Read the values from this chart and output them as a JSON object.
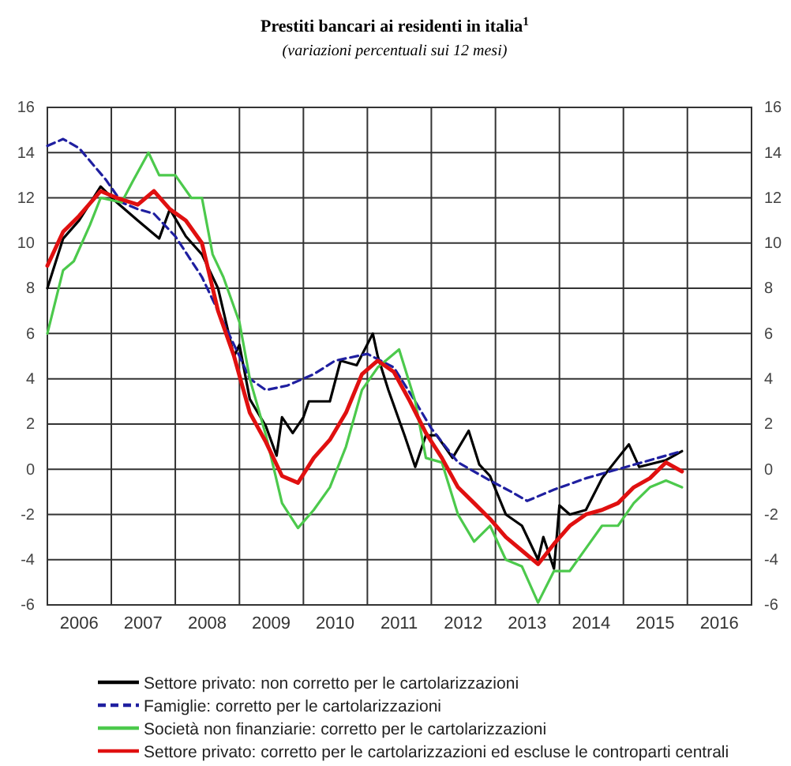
{
  "chart_data": {
    "type": "line",
    "title": "Prestiti bancari ai residenti in italia$^{1}$",
    "subtitle": "(variazioni percentuali sui 12 mesi)",
    "xlim": [
      "2006-01-01",
      "2017-01-01"
    ],
    "xticks": [
      {
        "value": "2006-07-01",
        "label": "2006"
      },
      {
        "value": "2007-07-01",
        "label": "2007"
      },
      {
        "value": "2008-07-01",
        "label": "2008"
      },
      {
        "value": "2009-07-01",
        "label": "2009"
      },
      {
        "value": "2010-07-01",
        "label": "2010"
      },
      {
        "value": "2011-07-01",
        "label": "2011"
      },
      {
        "value": "2012-07-01",
        "label": "2012"
      },
      {
        "value": "2013-07-01",
        "label": "2013"
      },
      {
        "value": "2014-07-01",
        "label": "2014"
      },
      {
        "value": "2015-07-01",
        "label": "2015"
      },
      {
        "value": "2016-07-01",
        "label": "2016"
      },
      {
        "value": "2007-01-01",
        "label": null
      },
      {
        "value": "2008-01-01",
        "label": null
      },
      {
        "value": "2009-01-01",
        "label": null
      },
      {
        "value": "2010-01-01",
        "label": null
      },
      {
        "value": "2011-01-01",
        "label": null
      },
      {
        "value": "2012-01-01",
        "label": null
      },
      {
        "value": "2013-01-01",
        "label": null
      },
      {
        "value": "2014-01-01",
        "label": null
      },
      {
        "value": "2015-01-01",
        "label": null
      },
      {
        "value": "2016-01-01",
        "label": null
      }
    ],
    "ylim": [
      -6,
      16
    ],
    "yticks": [
      -6,
      -4,
      -2,
      0,
      2,
      4,
      6,
      8,
      10,
      12,
      14,
      16
    ],
    "y2lim": [
      -6,
      16
    ],
    "y2ticks": [
      -6,
      -4,
      -2,
      0,
      2,
      4,
      6,
      8,
      10,
      12,
      14,
      16
    ],
    "grid": true,
    "legend": "bottom",
    "series": [
      {
        "name": "Settore privato: non corretto per le cartolarizzazioni",
        "color": "#000000",
        "line_style": "solid",
        "x": [
          "2006-01",
          "2006-04",
          "2006-07",
          "2006-11",
          "2007-02",
          "2007-06",
          "2007-10",
          "2007-12",
          "2008-03",
          "2008-06",
          "2008-09",
          "2008-12",
          "2009-01",
          "2009-03",
          "2009-06",
          "2009-08",
          "2009-09",
          "2009-11",
          "2010-01",
          "2010-02",
          "2010-06",
          "2010-08",
          "2010-11",
          "2011-02",
          "2011-03",
          "2011-05",
          "2011-08",
          "2011-10",
          "2011-12",
          "2012-02",
          "2012-05",
          "2012-08",
          "2012-10",
          "2012-12",
          "2013-03",
          "2013-06",
          "2013-09",
          "2013-10",
          "2013-12",
          "2014-01",
          "2014-03",
          "2014-06",
          "2014-09",
          "2014-12",
          "2015-02",
          "2015-04",
          "2015-09",
          "2015-12"
        ],
        "values": [
          8,
          10.2,
          11,
          12.5,
          11.8,
          11,
          10.2,
          11.5,
          10.3,
          9.5,
          8,
          5,
          5.5,
          3.1,
          1.9,
          0.6,
          2.3,
          1.6,
          2.3,
          3,
          3,
          4.8,
          4.6,
          6,
          5,
          3.5,
          1.5,
          0.1,
          1.5,
          1.5,
          0.5,
          1.7,
          0.2,
          -0.3,
          -2,
          -2.5,
          -4,
          -3,
          -4.4,
          -1.6,
          -2,
          -1.8,
          -0.4,
          0.5,
          1.1,
          0.1,
          0.4,
          0.8
        ]
      },
      {
        "name": "Famiglie: corretto per le cartolarizzazioni",
        "color": "#1f1fa0",
        "line_style": "dashed",
        "x": [
          "2006-01",
          "2006-04",
          "2006-07",
          "2006-12",
          "2007-03",
          "2007-06",
          "2007-09",
          "2008-01",
          "2008-06",
          "2008-10",
          "2009-01",
          "2009-03",
          "2009-06",
          "2009-10",
          "2010-03",
          "2010-07",
          "2011-01",
          "2011-06",
          "2011-10",
          "2012-01",
          "2012-06",
          "2012-12",
          "2013-04",
          "2013-07",
          "2013-12",
          "2014-06",
          "2014-12",
          "2015-06",
          "2015-12"
        ],
        "values": [
          14.3,
          14.6,
          14.2,
          12.8,
          11.8,
          11.5,
          11.3,
          10.3,
          8.5,
          6.5,
          5,
          4,
          3.5,
          3.7,
          4.2,
          4.8,
          5.1,
          4.5,
          3,
          1.8,
          0.3,
          -0.5,
          -1,
          -1.4,
          -0.9,
          -0.4,
          0,
          0.4,
          0.8
        ]
      },
      {
        "name": "Società non finanziarie: corretto per le cartolarizzazioni",
        "color": "#4cc94c",
        "line_style": "solid",
        "x": [
          "2006-01",
          "2006-04",
          "2006-06",
          "2006-09",
          "2006-11",
          "2007-03",
          "2007-05",
          "2007-08",
          "2007-10",
          "2008-01",
          "2008-04",
          "2008-06",
          "2008-08",
          "2008-10",
          "2009-01",
          "2009-03",
          "2009-06",
          "2009-09",
          "2009-12",
          "2010-03",
          "2010-06",
          "2010-09",
          "2010-12",
          "2011-03",
          "2011-07",
          "2011-10",
          "2011-12",
          "2012-03",
          "2012-06",
          "2012-09",
          "2012-12",
          "2013-03",
          "2013-06",
          "2013-09",
          "2013-12",
          "2014-03",
          "2014-06",
          "2014-09",
          "2014-12",
          "2015-03",
          "2015-06",
          "2015-09",
          "2015-12"
        ],
        "values": [
          6,
          8.8,
          9.2,
          10.8,
          12,
          11.8,
          12.7,
          14,
          13,
          13,
          12,
          12,
          9.5,
          8.5,
          6.5,
          4,
          1.5,
          -1.5,
          -2.6,
          -1.8,
          -0.8,
          1,
          3.5,
          4.5,
          5.3,
          3,
          0.5,
          0.3,
          -2,
          -3.2,
          -2.5,
          -4,
          -4.3,
          -5.9,
          -4.5,
          -4.5,
          -3.5,
          -2.5,
          -2.5,
          -1.5,
          -0.8,
          -0.5,
          -0.8
        ]
      },
      {
        "name": "Settore privato: corretto per le cartolarizzazioni ed escluse le controparti centrali",
        "color": "#e01010",
        "line_style": "solid",
        "x": [
          "2006-01",
          "2006-04",
          "2006-07",
          "2006-11",
          "2007-02",
          "2007-06",
          "2007-09",
          "2007-12",
          "2008-03",
          "2008-06",
          "2008-09",
          "2008-12",
          "2009-03",
          "2009-06",
          "2009-09",
          "2009-12",
          "2010-03",
          "2010-06",
          "2010-09",
          "2010-12",
          "2011-03",
          "2011-06",
          "2011-09",
          "2011-12",
          "2012-03",
          "2012-06",
          "2012-09",
          "2012-12",
          "2013-03",
          "2013-06",
          "2013-09",
          "2013-12",
          "2014-03",
          "2014-06",
          "2014-09",
          "2014-12",
          "2015-03",
          "2015-06",
          "2015-09",
          "2015-12"
        ],
        "values": [
          9,
          10.5,
          11.2,
          12.3,
          12,
          11.7,
          12.3,
          11.5,
          11,
          10,
          7,
          5,
          2.5,
          1.2,
          -0.3,
          -0.6,
          0.5,
          1.3,
          2.5,
          4.2,
          4.8,
          4.3,
          3,
          1.6,
          0.5,
          -0.8,
          -1.5,
          -2.2,
          -3,
          -3.6,
          -4.2,
          -3.3,
          -2.5,
          -2,
          -1.8,
          -1.5,
          -0.8,
          -0.4,
          0.3,
          -0.1
        ]
      }
    ]
  }
}
